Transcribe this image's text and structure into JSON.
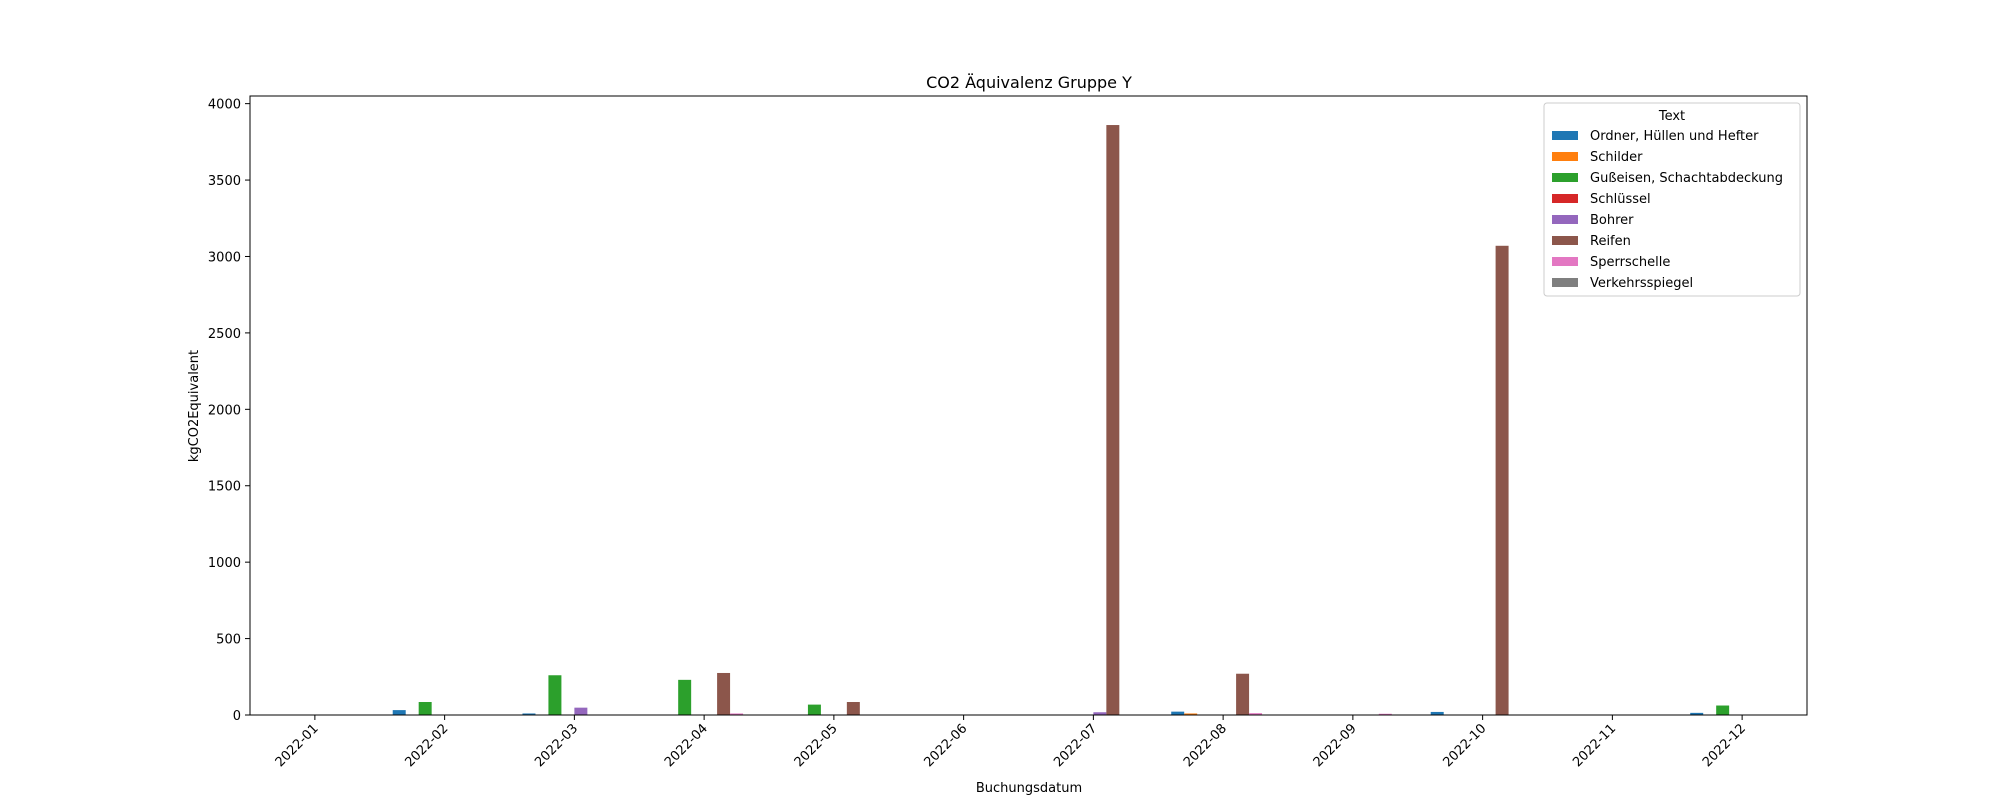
{
  "chart_data": {
    "type": "bar",
    "title": "CO2 Äquivalenz Gruppe Y",
    "xlabel": "Buchungsdatum",
    "ylabel": "kgCO2Equivalent",
    "ylim": [
      0,
      4050
    ],
    "yticks": [
      0,
      500,
      1000,
      1500,
      2000,
      2500,
      3000,
      3500,
      4000
    ],
    "grid": false,
    "legend_title": "Text",
    "legend_position": "top-right",
    "categories": [
      "2022-01",
      "2022-02",
      "2022-03",
      "2022-04",
      "2022-05",
      "2022-06",
      "2022-07",
      "2022-08",
      "2022-09",
      "2022-10",
      "2022-11",
      "2022-12"
    ],
    "series": [
      {
        "name": "Ordner, Hüllen und Hefter",
        "color": "#1f77b4",
        "values": [
          0,
          32,
          10,
          0,
          0,
          0,
          0,
          22,
          0,
          20,
          0,
          14
        ]
      },
      {
        "name": "Schilder",
        "color": "#ff7f0e",
        "values": [
          0,
          0,
          0,
          0,
          0,
          0,
          0,
          10,
          0,
          0,
          0,
          0
        ]
      },
      {
        "name": "Gußeisen, Schachtabdeckung",
        "color": "#2ca02c",
        "values": [
          0,
          85,
          260,
          230,
          68,
          0,
          0,
          0,
          0,
          0,
          0,
          62
        ]
      },
      {
        "name": "Schlüssel",
        "color": "#d62728",
        "values": [
          0,
          0,
          0,
          0,
          0,
          0,
          0,
          0,
          0,
          0,
          0,
          0
        ]
      },
      {
        "name": "Bohrer",
        "color": "#9467bd",
        "values": [
          0,
          0,
          48,
          0,
          0,
          0,
          18,
          0,
          0,
          0,
          0,
          0
        ]
      },
      {
        "name": "Reifen",
        "color": "#8c564b",
        "values": [
          0,
          0,
          0,
          275,
          85,
          0,
          3860,
          270,
          0,
          3070,
          0,
          0
        ]
      },
      {
        "name": "Sperrschelle",
        "color": "#e377c2",
        "values": [
          0,
          0,
          0,
          10,
          0,
          0,
          0,
          12,
          8,
          0,
          0,
          0
        ]
      },
      {
        "name": "Verkehrsspiegel",
        "color": "#7f7f7f",
        "values": [
          0,
          0,
          0,
          0,
          0,
          0,
          0,
          0,
          0,
          0,
          0,
          0
        ]
      }
    ]
  }
}
